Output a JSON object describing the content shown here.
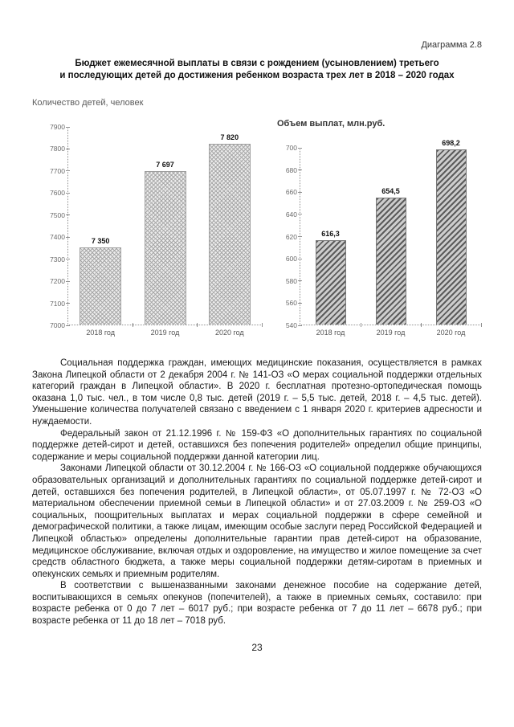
{
  "header": {
    "diagram_tag": "Диаграмма 2.8",
    "title_line1": "Бюджет ежемесячной выплаты в связи с рождением (усыновлением) третьего",
    "title_line2": "и последующих детей до достижения ребенком возраста трех лет в 2018 – 2020 годах"
  },
  "chart_data": [
    {
      "type": "bar",
      "title": "Количество детей, человек",
      "categories": [
        "2018 год",
        "2019 год",
        "2020 год"
      ],
      "values": [
        7350,
        7697,
        7820
      ],
      "value_labels": [
        "7 350",
        "7 697",
        "7 820"
      ],
      "ylim": [
        7000,
        7900
      ],
      "ytick_step": 100,
      "grid": false,
      "legend": "none",
      "bar_pattern": "light-checker",
      "bar_color": "#dcdcdc"
    },
    {
      "type": "bar",
      "title": "Объем выплат, млн.руб.",
      "categories": [
        "2018 год",
        "2019 год",
        "2020 год"
      ],
      "values": [
        616.3,
        654.5,
        698.2
      ],
      "value_labels": [
        "616,3",
        "654,5",
        "698,2"
      ],
      "ylim": [
        540,
        700
      ],
      "ytick_step": 20,
      "grid": false,
      "legend": "none",
      "bar_pattern": "diagonal-hatch",
      "bar_color": "#8f8f8f"
    }
  ],
  "paragraphs": [
    "Социальная поддержка граждан, имеющих медицинские показания, осуществляется в рамках Закона Липецкой области от 2 декабря 2004 г. № 141-ОЗ «О мерах социальной поддержки отдельных категорий граждан в Липецкой области». В 2020 г. бесплатная протезно-ортопедическая помощь оказана 1,0 тыс. чел., в том числе 0,8 тыс. детей (2019 г. – 5,5 тыс. детей, 2018 г. – 4,5 тыс. детей). Уменьшение количества получателей связано с введением с 1 января 2020 г. критериев адресности и нуждаемости.",
    "Федеральный закон от 21.12.1996 г. № 159-ФЗ «О дополнительных гарантиях по социальной поддержке детей-сирот и детей, оставшихся без попечения родителей» определил общие принципы, содержание и меры социальной поддержки данной категории лиц.",
    "Законами Липецкой области от 30.12.2004 г. № 166-ОЗ «О социальной поддержке обучающихся образовательных организаций и дополнительных гарантиях по социальной поддержке детей-сирот и детей, оставшихся без попечения родителей, в Липецкой области», от 05.07.1997 г. № 72-ОЗ «О материальном обеспечении приемной семьи в Липецкой области» и от 27.03.2009 г. № 259-ОЗ «О социальных, поощрительных выплатах и мерах социальной поддержки в сфере семейной и демографической политики, а также лицам, имеющим особые заслуги перед Российской Федерацией и Липецкой областью» определены дополнительные гарантии прав детей-сирот на образование, медицинское обслуживание, включая отдых и оздоровление, на имущество и жилое помещение за счет средств областного бюджета, а также меры социальной поддержки детям-сиротам в приемных и опекунских семьях и приемным родителям.",
    "В соответствии с вышеназванными законами денежное пособие на содержание детей, воспитывающихся в семьях опекунов (попечителей), а также в приемных семьях, составило: при возрасте ребенка от 0 до 7 лет – 6017 руб.; при возрасте ребенка от 7 до 11 лет – 6678 руб.; при возрасте ребенка от 11 до 18 лет – 7018 руб."
  ],
  "footer": {
    "page_number": "23"
  }
}
